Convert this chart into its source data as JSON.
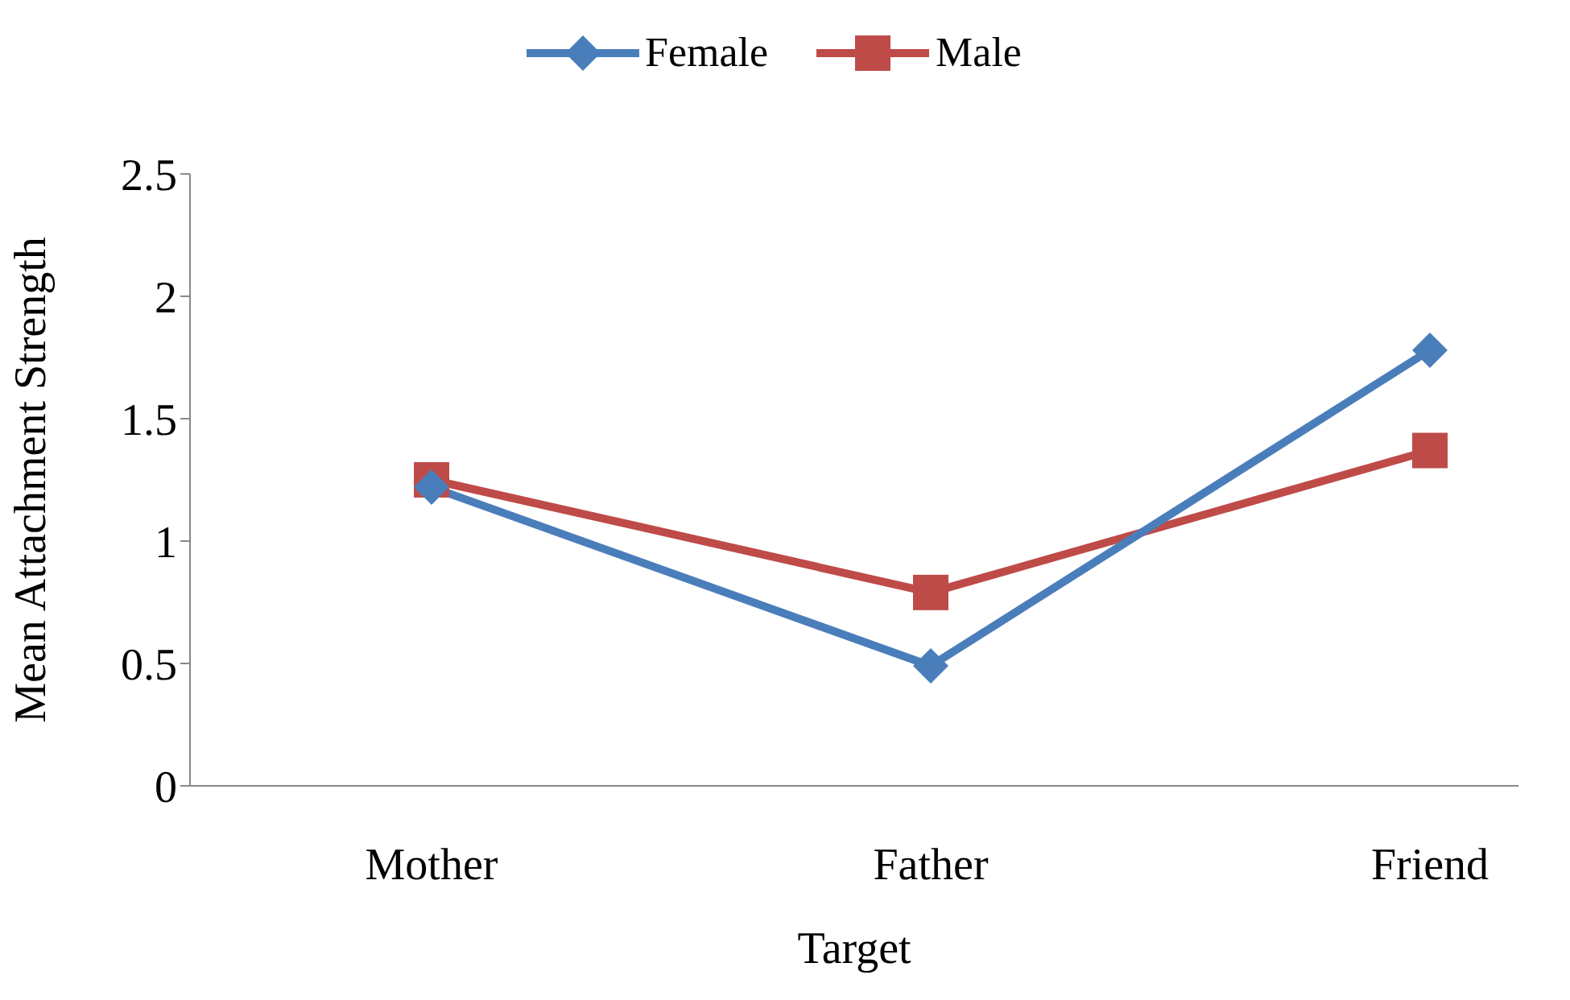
{
  "chart_data": {
    "type": "line",
    "xlabel": "Target",
    "ylabel": "Mean Attachment Strength",
    "categories": [
      "Mother",
      "Father",
      "Friend"
    ],
    "series": [
      {
        "name": "Female",
        "color": "#4a7ebb",
        "values": [
          1.22,
          0.49,
          1.78
        ],
        "marker": "diamond"
      },
      {
        "name": "Male",
        "color": "#be4b48",
        "values": [
          1.25,
          0.79,
          1.37
        ],
        "marker": "square"
      }
    ],
    "ylim": [
      0,
      2.5
    ],
    "yticks": [
      0,
      0.5,
      1,
      1.5,
      2,
      2.5
    ],
    "grid": false,
    "legend": "top"
  }
}
